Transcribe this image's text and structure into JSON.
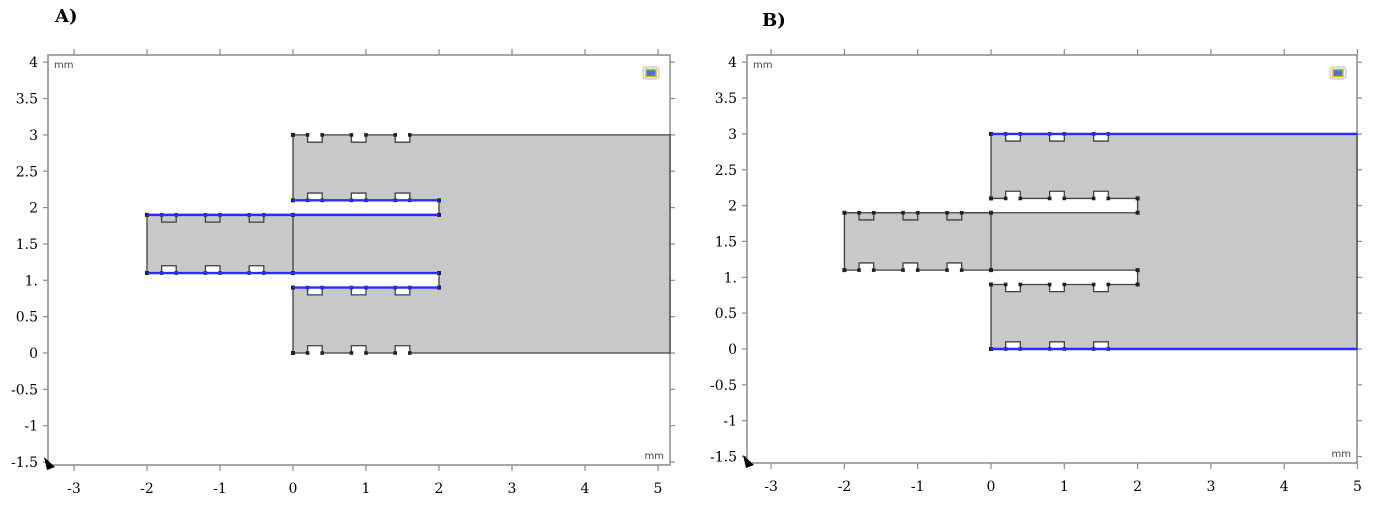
{
  "panels": [
    {
      "label": "A)",
      "x_ticks": [
        "-3",
        "-2",
        "-1",
        "0",
        "1",
        "2",
        "3",
        "4",
        "5"
      ],
      "y_ticks": [
        "4",
        "3.5",
        "3",
        "2.5",
        "2",
        "1.5",
        "1.",
        "0.5",
        "0",
        "-0.5",
        "-1",
        "-1.5"
      ],
      "unit_top_left": "mm",
      "unit_bottom_right": "mm",
      "highlighted_boundaries": "feed-line inner edges (blue)",
      "accent_color": "#2b2bff"
    },
    {
      "label": "B)",
      "x_ticks": [
        "-3",
        "-2",
        "-1",
        "0",
        "1",
        "2",
        "3",
        "4",
        "5"
      ],
      "y_ticks": [
        "4",
        "3.5",
        "3",
        "2.5",
        "2",
        "1.5",
        "1.",
        "0.5",
        "0",
        "-0.5",
        "-1",
        "-1.5"
      ],
      "unit_top_left": "mm",
      "unit_bottom_right": "mm",
      "highlighted_boundaries": "outer top and bottom edges (blue)",
      "accent_color": "#2b2bff"
    }
  ],
  "colors": {
    "domain_fill": "#c8c8c8",
    "edge": "#404040",
    "highlight": "#2b2bff",
    "frame": "#8a8a8a",
    "background": "#ffffff"
  },
  "icons": [
    "view-cube-icon",
    "axis-origin-icon"
  ]
}
